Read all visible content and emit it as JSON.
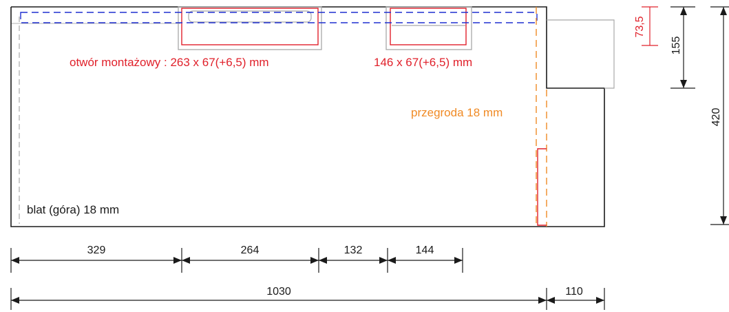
{
  "labels": {
    "cutout_main": "otwór montażowy : 263 x 67(+6,5) mm",
    "cutout_small": "146 x 67(+6,5) mm",
    "partition": "przegroda 18 mm",
    "top_board": "blat (góra) 18 mm"
  },
  "dimensions": {
    "horizontal_row1": [
      "329",
      "264",
      "132",
      "144"
    ],
    "horizontal_total": "1030",
    "horizontal_side": "110",
    "vertical_depth": "73,5",
    "vertical_step": "155",
    "vertical_total": "420"
  },
  "colors": {
    "outline": "#1a1a1a",
    "cutout": "#e0202a",
    "partition": "#f08a24",
    "rail": "#1f2fd0",
    "hidden": "#a8a8a8"
  }
}
